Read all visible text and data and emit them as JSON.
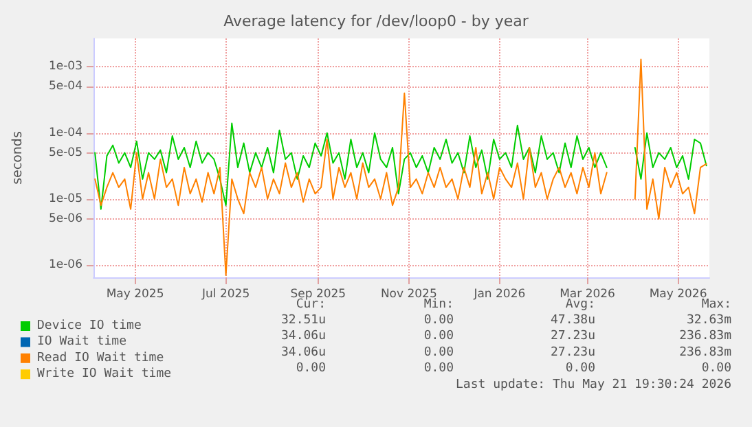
{
  "chart_data": {
    "type": "line",
    "title": "Average latency for /dev/loop0 - by year",
    "ylabel": "seconds",
    "log": "y",
    "grid": true,
    "legend": "bottom",
    "marker": "none",
    "line_style": "solid",
    "x": [
      "2025-04-04",
      "2025-04-08",
      "2025-04-12",
      "2025-04-16",
      "2025-04-20",
      "2025-04-24",
      "2025-04-28",
      "2025-05-02",
      "2025-05-06",
      "2025-05-10",
      "2025-05-14",
      "2025-05-18",
      "2025-05-22",
      "2025-05-26",
      "2025-05-30",
      "2025-06-03",
      "2025-06-07",
      "2025-06-11",
      "2025-06-15",
      "2025-06-19",
      "2025-06-23",
      "2025-06-27",
      "2025-07-01",
      "2025-07-05",
      "2025-07-09",
      "2025-07-13",
      "2025-07-17",
      "2025-07-21",
      "2025-07-25",
      "2025-07-29",
      "2025-08-02",
      "2025-08-06",
      "2025-08-10",
      "2025-08-14",
      "2025-08-18",
      "2025-08-22",
      "2025-08-26",
      "2025-08-30",
      "2025-09-03",
      "2025-09-07",
      "2025-09-11",
      "2025-09-15",
      "2025-09-19",
      "2025-09-23",
      "2025-09-27",
      "2025-10-01",
      "2025-10-05",
      "2025-10-09",
      "2025-10-13",
      "2025-10-17",
      "2025-10-21",
      "2025-10-25",
      "2025-10-29",
      "2025-11-02",
      "2025-11-06",
      "2025-11-10",
      "2025-11-14",
      "2025-11-18",
      "2025-11-22",
      "2025-11-26",
      "2025-11-30",
      "2025-12-04",
      "2025-12-08",
      "2025-12-12",
      "2025-12-16",
      "2025-12-20",
      "2025-12-24",
      "2025-12-28",
      "2026-01-01",
      "2026-01-05",
      "2026-01-09",
      "2026-01-13",
      "2026-01-17",
      "2026-01-21",
      "2026-01-25",
      "2026-01-29",
      "2026-02-02",
      "2026-02-06",
      "2026-02-10",
      "2026-02-14",
      "2026-02-18",
      "2026-02-22",
      "2026-02-26",
      "2026-03-02",
      "2026-03-06",
      "2026-03-10",
      "2026-03-14",
      "2026-03-24",
      "2026-04-02",
      "2026-04-06",
      "2026-04-10",
      "2026-04-14",
      "2026-04-18",
      "2026-04-22",
      "2026-04-26",
      "2026-04-30",
      "2026-05-04",
      "2026-05-08",
      "2026-05-12",
      "2026-05-16",
      "2026-05-20"
    ],
    "series": [
      {
        "name": "Device IO time",
        "color": "#00cc00",
        "values": [
          5e-05,
          7e-06,
          4.5e-05,
          6.5e-05,
          3.5e-05,
          5e-05,
          3e-05,
          7.5e-05,
          2e-05,
          5e-05,
          4e-05,
          5.5e-05,
          2.5e-05,
          9e-05,
          4e-05,
          6e-05,
          3e-05,
          7.5e-05,
          3.5e-05,
          5e-05,
          4e-05,
          2e-05,
          8e-06,
          0.00014,
          3e-05,
          7e-05,
          2.5e-05,
          5e-05,
          3e-05,
          6e-05,
          2.5e-05,
          0.00011,
          4e-05,
          5e-05,
          2e-05,
          4.5e-05,
          3e-05,
          7e-05,
          4.5e-05,
          0.0001,
          3.5e-05,
          5e-05,
          2e-05,
          8e-05,
          3e-05,
          5e-05,
          2.5e-05,
          0.0001,
          4e-05,
          3e-05,
          6e-05,
          1.2e-05,
          4e-05,
          5e-05,
          3e-05,
          4.5e-05,
          2.5e-05,
          6e-05,
          4e-05,
          8e-05,
          3.5e-05,
          5e-05,
          2.5e-05,
          9e-05,
          3e-05,
          5.5e-05,
          2e-05,
          8e-05,
          4e-05,
          5e-05,
          3e-05,
          0.00013,
          4e-05,
          6e-05,
          2.5e-05,
          9e-05,
          4e-05,
          5e-05,
          2.5e-05,
          7e-05,
          3e-05,
          9e-05,
          4e-05,
          6e-05,
          3e-05,
          5e-05,
          3e-05,
          null,
          6e-05,
          2e-05,
          0.0001,
          3e-05,
          5e-05,
          4e-05,
          6e-05,
          3e-05,
          4.5e-05,
          2e-05,
          8e-05,
          7e-05,
          3.2e-05
        ]
      },
      {
        "name": "IO Wait time",
        "color": "#0066b3",
        "values": [
          null,
          null,
          null,
          null,
          null,
          null,
          null,
          null,
          null,
          null,
          null,
          null,
          null,
          null,
          null,
          null,
          null,
          null,
          null,
          null,
          null,
          null,
          null,
          null,
          null,
          null,
          null,
          null,
          null,
          null,
          null,
          null,
          null,
          null,
          null,
          null,
          null,
          null,
          null,
          null,
          null,
          null,
          null,
          null,
          null,
          null,
          null,
          null,
          null,
          null,
          null,
          null,
          null,
          null,
          null,
          null,
          null,
          null,
          null,
          null,
          null,
          null,
          null,
          null,
          null,
          null,
          null,
          null,
          null,
          null,
          null,
          null,
          null,
          null,
          null,
          null,
          null,
          null,
          null,
          null,
          null,
          null,
          null,
          null,
          null,
          null,
          null,
          null,
          null,
          null,
          null,
          null,
          null,
          null,
          null,
          null,
          null,
          null,
          null,
          null,
          null
        ]
      },
      {
        "name": "Read IO Wait time",
        "color": "#ff8000",
        "values": [
          2e-05,
          8e-06,
          1.5e-05,
          2.5e-05,
          1.5e-05,
          2e-05,
          7e-06,
          5e-05,
          1e-05,
          2.5e-05,
          1e-05,
          4e-05,
          1.5e-05,
          2e-05,
          8e-06,
          3e-05,
          1.2e-05,
          2e-05,
          9e-06,
          2.5e-05,
          1.2e-05,
          3e-05,
          7e-07,
          2e-05,
          1e-05,
          6e-06,
          2.5e-05,
          1.5e-05,
          3e-05,
          1e-05,
          2e-05,
          1.2e-05,
          3.5e-05,
          1.5e-05,
          2.5e-05,
          9e-06,
          2e-05,
          1.2e-05,
          1.5e-05,
          8e-05,
          1e-05,
          3e-05,
          1.5e-05,
          2.5e-05,
          1e-05,
          3.5e-05,
          1.5e-05,
          2e-05,
          1e-05,
          2.5e-05,
          8e-06,
          1.5e-05,
          0.0004,
          1.5e-05,
          2e-05,
          1.2e-05,
          2.5e-05,
          1.5e-05,
          3e-05,
          1.5e-05,
          2e-05,
          1e-05,
          3e-05,
          1.5e-05,
          6e-05,
          1.2e-05,
          2.5e-05,
          1e-05,
          3e-05,
          2e-05,
          1.5e-05,
          3.5e-05,
          1e-05,
          6e-05,
          1.5e-05,
          2.5e-05,
          1e-05,
          2e-05,
          3e-05,
          1.5e-05,
          2.5e-05,
          1.2e-05,
          3e-05,
          1.5e-05,
          5e-05,
          1.2e-05,
          2.5e-05,
          null,
          1e-05,
          0.0013,
          7e-06,
          2e-05,
          5e-06,
          3e-05,
          1.5e-05,
          2.5e-05,
          1.2e-05,
          1.5e-05,
          6e-06,
          3e-05,
          3.4e-05
        ]
      },
      {
        "name": "Write IO Wait time",
        "color": "#ffcc00",
        "values": [
          null,
          null,
          null,
          null,
          null,
          null,
          null,
          null,
          null,
          null,
          null,
          null,
          null,
          null,
          null,
          null,
          null,
          null,
          null,
          null,
          null,
          null,
          null,
          null,
          null,
          null,
          null,
          null,
          null,
          null,
          null,
          null,
          null,
          null,
          null,
          null,
          null,
          null,
          null,
          null,
          null,
          null,
          null,
          null,
          null,
          null,
          null,
          null,
          null,
          null,
          null,
          null,
          null,
          null,
          null,
          null,
          null,
          null,
          null,
          null,
          null,
          null,
          null,
          null,
          null,
          null,
          null,
          null,
          null,
          null,
          null,
          null,
          null,
          null,
          null,
          null,
          null,
          null,
          null,
          null,
          null,
          null,
          null,
          null,
          null,
          null,
          null,
          null,
          null,
          null,
          null,
          null,
          null,
          null,
          null,
          null,
          null,
          null,
          null,
          null,
          null
        ]
      }
    ],
    "xlim": [
      "2025-04-03",
      "2026-05-22"
    ],
    "xticks": [
      {
        "value": "2025-05-01",
        "label": "May 2025"
      },
      {
        "value": "2025-07-01",
        "label": "Jul 2025"
      },
      {
        "value": "2025-09-01",
        "label": "Sep 2025"
      },
      {
        "value": "2025-11-01",
        "label": "Nov 2025"
      },
      {
        "value": "2026-01-01",
        "label": "Jan 2026"
      },
      {
        "value": "2026-03-01",
        "label": "Mar 2026"
      },
      {
        "value": "2026-05-01",
        "label": "May 2026"
      }
    ],
    "ylim": [
      6.5e-07,
      0.0027
    ],
    "yticks": [
      {
        "value": 1e-06,
        "label": "1e-06"
      },
      {
        "value": 5e-06,
        "label": "5e-06"
      },
      {
        "value": 1e-05,
        "label": "1e-05"
      },
      {
        "value": 5e-05,
        "label": "5e-05"
      },
      {
        "value": 0.0001,
        "label": "1e-04"
      },
      {
        "value": 0.0005,
        "label": "5e-04"
      },
      {
        "value": 0.001,
        "label": "1e-03"
      }
    ],
    "annotations": [
      "Cur:",
      "Min:",
      "Avg:",
      "Max:",
      "32.51u",
      "0.00",
      "47.38u",
      "32.63m",
      "34.06u",
      "0.00",
      "27.23u",
      "236.83m",
      "34.06u",
      "0.00",
      "27.23u",
      "236.83m",
      "0.00",
      "0.00",
      "0.00",
      "0.00",
      "Last update: Thu May 21 19:30:24 2026"
    ]
  }
}
